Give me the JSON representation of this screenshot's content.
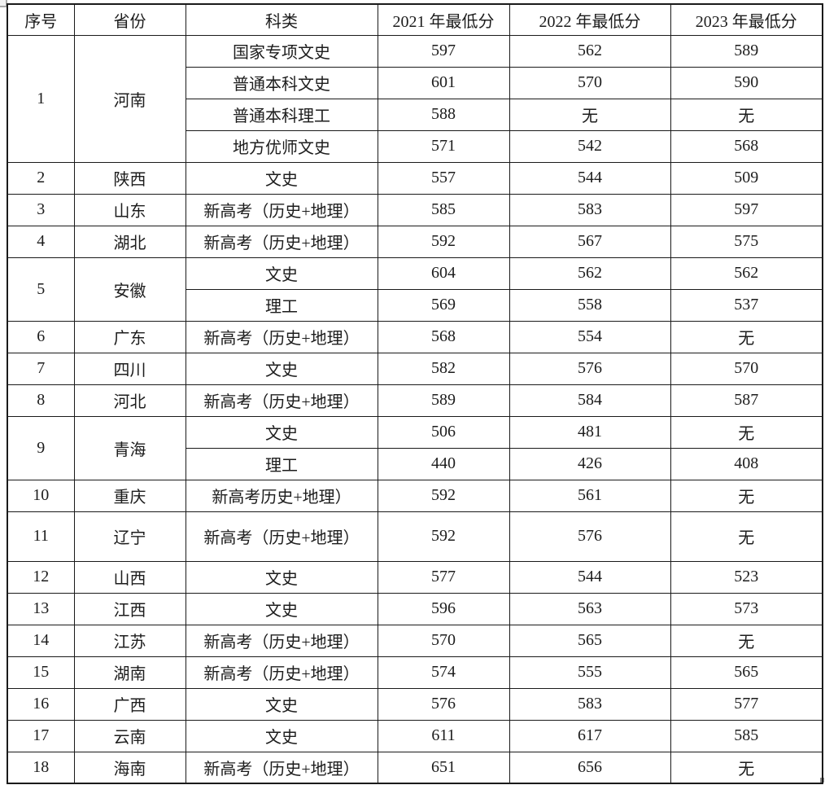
{
  "table": {
    "columns": [
      "序号",
      "省份",
      "科类",
      "2021 年最低分",
      "2022 年最低分",
      "2023 年最低分"
    ],
    "no_data_text": "无",
    "provinces": [
      {
        "no": "1",
        "province": "河南",
        "entries": [
          {
            "category": "国家专项文史",
            "y2021": "597",
            "y2022": "562",
            "y2023": "589"
          },
          {
            "category": "普通本科文史",
            "y2021": "601",
            "y2022": "570",
            "y2023": "590"
          },
          {
            "category": "普通本科理工",
            "y2021": "588",
            "y2022": "无",
            "y2023": "无"
          },
          {
            "category": "地方优师文史",
            "y2021": "571",
            "y2022": "542",
            "y2023": "568"
          }
        ]
      },
      {
        "no": "2",
        "province": "陕西",
        "entries": [
          {
            "category": "文史",
            "y2021": "557",
            "y2022": "544",
            "y2023": "509"
          }
        ]
      },
      {
        "no": "3",
        "province": "山东",
        "entries": [
          {
            "category": "新高考（历史+地理）",
            "y2021": "585",
            "y2022": "583",
            "y2023": "597"
          }
        ]
      },
      {
        "no": "4",
        "province": "湖北",
        "entries": [
          {
            "category": "新高考（历史+地理）",
            "y2021": "592",
            "y2022": "567",
            "y2023": "575"
          }
        ]
      },
      {
        "no": "5",
        "province": "安徽",
        "entries": [
          {
            "category": "文史",
            "y2021": "604",
            "y2022": "562",
            "y2023": "562"
          },
          {
            "category": "理工",
            "y2021": "569",
            "y2022": "558",
            "y2023": "537"
          }
        ]
      },
      {
        "no": "6",
        "province": "广东",
        "entries": [
          {
            "category": "新高考（历史+地理）",
            "y2021": "568",
            "y2022": "554",
            "y2023": "无"
          }
        ]
      },
      {
        "no": "7",
        "province": "四川",
        "entries": [
          {
            "category": "文史",
            "y2021": "582",
            "y2022": "576",
            "y2023": "570"
          }
        ]
      },
      {
        "no": "8",
        "province": "河北",
        "entries": [
          {
            "category": "新高考（历史+地理）",
            "y2021": "589",
            "y2022": "584",
            "y2023": "587"
          }
        ]
      },
      {
        "no": "9",
        "province": "青海",
        "entries": [
          {
            "category": "文史",
            "y2021": "506",
            "y2022": "481",
            "y2023": "无"
          },
          {
            "category": "理工",
            "y2021": "440",
            "y2022": "426",
            "y2023": "408"
          }
        ]
      },
      {
        "no": "10",
        "province": "重庆",
        "entries": [
          {
            "category": "新高考历史+地理）",
            "y2021": "592",
            "y2022": "561",
            "y2023": "无"
          }
        ]
      },
      {
        "no": "11",
        "province": "辽宁",
        "tall": true,
        "entries": [
          {
            "category": "新高考（历史+地理）",
            "y2021": "592",
            "y2022": "576",
            "y2023": "无"
          }
        ]
      },
      {
        "no": "12",
        "province": "山西",
        "entries": [
          {
            "category": "文史",
            "y2021": "577",
            "y2022": "544",
            "y2023": "523"
          }
        ]
      },
      {
        "no": "13",
        "province": "江西",
        "entries": [
          {
            "category": "文史",
            "y2021": "596",
            "y2022": "563",
            "y2023": "573"
          }
        ]
      },
      {
        "no": "14",
        "province": "江苏",
        "entries": [
          {
            "category": "新高考（历史+地理）",
            "y2021": "570",
            "y2022": "565",
            "y2023": "无"
          }
        ]
      },
      {
        "no": "15",
        "province": "湖南",
        "entries": [
          {
            "category": "新高考（历史+地理）",
            "y2021": "574",
            "y2022": "555",
            "y2023": "565"
          }
        ]
      },
      {
        "no": "16",
        "province": "广西",
        "entries": [
          {
            "category": "文史",
            "y2021": "576",
            "y2022": "583",
            "y2023": "577"
          }
        ]
      },
      {
        "no": "17",
        "province": "云南",
        "entries": [
          {
            "category": "文史",
            "y2021": "611",
            "y2022": "617",
            "y2023": "585"
          }
        ]
      },
      {
        "no": "18",
        "province": "海南",
        "entries": [
          {
            "category": "新高考（历史+地理）",
            "y2021": "651",
            "y2022": "656",
            "y2023": "无"
          }
        ]
      }
    ]
  }
}
